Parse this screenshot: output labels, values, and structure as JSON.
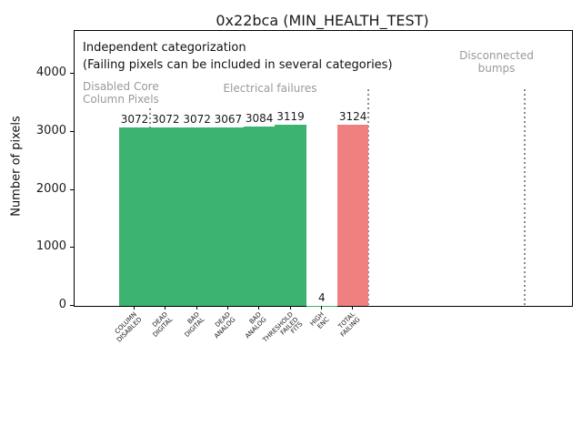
{
  "chart_data": {
    "type": "bar",
    "title": "0x22bca (MIN_HEALTH_TEST)",
    "ylabel": "Number of pixels",
    "xlabel": "",
    "categories": [
      "COLUMN\nDISABLED",
      "DEAD\nDIGITAL",
      "BAD\nDIGITAL",
      "DEAD\nANALOG",
      "BAD\nANALOG",
      "THRESHOLD\nFAILED\nFITS",
      "HIGH\nENC",
      "TOTAL\nFAILING"
    ],
    "values": [
      3072,
      3072,
      3072,
      3067,
      3084,
      3119,
      4,
      3124
    ],
    "value_labels": [
      "3072",
      "3072",
      "3072",
      "3067",
      "3084",
      "3119",
      "4",
      "3124"
    ],
    "bar_colors": [
      "#3cb371",
      "#3cb371",
      "#3cb371",
      "#3cb371",
      "#3cb371",
      "#3cb371",
      "#3cb371",
      "#f08080"
    ],
    "yticks": [
      0,
      1000,
      2000,
      3000,
      4000
    ],
    "ylim": [
      0,
      4750
    ],
    "grid": false,
    "legend": null,
    "annotations": {
      "note": {
        "line1": "Independent categorization",
        "line2": "(Failing pixels can be included in several categories)"
      },
      "sections": [
        {
          "line1": "Disabled Core",
          "line2": "Column Pixels"
        },
        {
          "line1": "Electrical failures",
          "line2": ""
        },
        {
          "line1": "Disconnected",
          "line2": "bumps"
        }
      ],
      "separator_style": "dotted",
      "separator_positions_category_units": [
        0.5,
        7.5,
        12.5
      ]
    },
    "colors": {
      "bar_green": "#3cb371",
      "bar_red": "#f08080",
      "section_text_gray": "#9a9a9a",
      "separator_gray": "#8a8a8a"
    }
  }
}
